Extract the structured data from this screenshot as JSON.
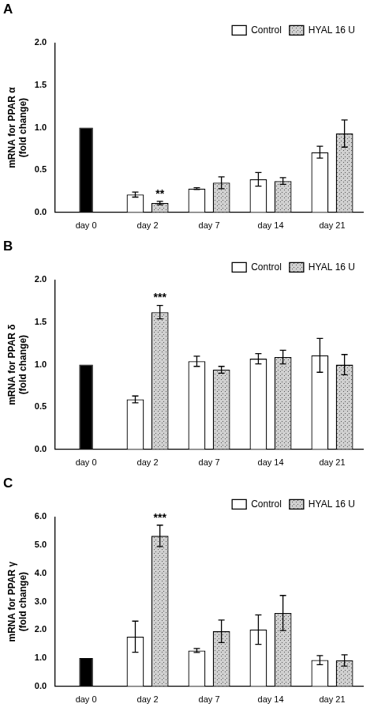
{
  "chart_data": [
    {
      "type": "bar",
      "title": "A",
      "ylabel": [
        "mRNA for PPAR α",
        "(fold change)"
      ],
      "categories": [
        "day 0",
        "day 2",
        "day 7",
        "day 14",
        "day 21"
      ],
      "series": [
        {
          "name": "Control",
          "color": "#ffffff",
          "values": [
            null,
            0.21,
            0.28,
            0.39,
            0.71
          ],
          "errors": [
            null,
            0.03,
            0.01,
            0.08,
            0.07
          ]
        },
        {
          "name": "HYAL 16 U",
          "color": "#d0d0d0",
          "values": [
            null,
            0.11,
            0.35,
            0.37,
            0.93
          ],
          "errors": [
            null,
            0.02,
            0.07,
            0.04,
            0.16
          ]
        }
      ],
      "baseline": {
        "values": [
          1,
          null,
          null,
          null,
          null
        ],
        "color": "#000000"
      },
      "annotations": [
        {
          "category": "day 2",
          "series": "HYAL 16 U",
          "text": "**"
        }
      ],
      "ylim": [
        0,
        2
      ],
      "yticks": [
        {
          "value": 0,
          "label": "0.0"
        },
        0.5,
        {
          "value": 1,
          "label": "1.0"
        },
        1.5,
        {
          "value": 2,
          "label": "2.0"
        }
      ],
      "grid": false,
      "legend": "upper right"
    },
    {
      "type": "bar",
      "title": "B",
      "ylabel": [
        "mRNA for PPAR δ",
        "(fold change)"
      ],
      "categories": [
        "day 0",
        "day 2",
        "day 7",
        "day 14",
        "day 21"
      ],
      "series": [
        {
          "name": "Control",
          "color": "#ffffff",
          "values": [
            null,
            0.59,
            1.04,
            1.07,
            1.11
          ],
          "errors": [
            null,
            0.04,
            0.06,
            0.06,
            0.2
          ]
        },
        {
          "name": "HYAL 16 U",
          "color": "#d0d0d0",
          "values": [
            null,
            1.62,
            0.94,
            1.09,
            1.0
          ],
          "errors": [
            null,
            0.08,
            0.04,
            0.08,
            0.12
          ]
        }
      ],
      "baseline": {
        "values": [
          1,
          null,
          null,
          null,
          null
        ],
        "color": "#000000"
      },
      "annotations": [
        {
          "category": "day 2",
          "series": "HYAL 16 U",
          "text": "***"
        }
      ],
      "ylim": [
        0,
        2
      ],
      "yticks": [
        {
          "value": 0,
          "label": "0.0"
        },
        0.5,
        {
          "value": 1,
          "label": "1.0"
        },
        1.5,
        {
          "value": 2,
          "label": "2.0"
        }
      ],
      "grid": false,
      "legend": "upper right"
    },
    {
      "type": "bar",
      "title": "C",
      "ylabel": [
        "mRNA for PPAR γ",
        "(fold change)"
      ],
      "categories": [
        "day 0",
        "day 2",
        "day 7",
        "day 14",
        "day 21"
      ],
      "series": [
        {
          "name": "Control",
          "color": "#ffffff",
          "values": [
            null,
            1.76,
            1.27,
            2.01,
            0.93
          ],
          "errors": [
            null,
            0.55,
            0.07,
            0.52,
            0.16
          ]
        },
        {
          "name": "HYAL 16 U",
          "color": "#d0d0d0",
          "values": [
            null,
            5.33,
            1.95,
            2.6,
            0.92
          ],
          "errors": [
            null,
            0.38,
            0.4,
            0.62,
            0.2
          ]
        }
      ],
      "baseline": {
        "values": [
          1,
          null,
          null,
          null,
          null
        ],
        "color": "#000000"
      },
      "annotations": [
        {
          "category": "day 2",
          "series": "HYAL 16 U",
          "text": "***"
        }
      ],
      "ylim": [
        0,
        6
      ],
      "yticks": [
        {
          "value": 0,
          "label": "0.0"
        },
        {
          "value": 1,
          "label": "1.0"
        },
        {
          "value": 2,
          "label": "2.0"
        },
        {
          "value": 3,
          "label": "3.0"
        },
        {
          "value": 4,
          "label": "4.0"
        },
        {
          "value": 5,
          "label": "5.0"
        },
        {
          "value": 6,
          "label": "6.0"
        }
      ],
      "grid": false,
      "legend": "upper right"
    }
  ]
}
